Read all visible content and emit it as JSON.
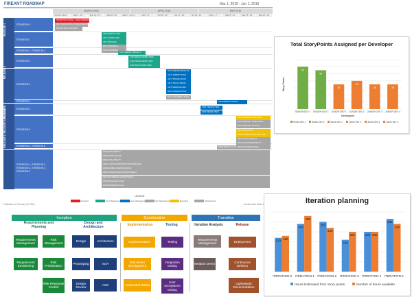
{
  "roadmap": {
    "title": "FIREANT ROADMAP",
    "date_range": "Mar 1, 2016 - Jun 1, 2016",
    "months": [
      "MARCH 2016",
      "APRIL 2016",
      "MAY 2016"
    ],
    "weeks": [
      "Feb 28 - Mar 5",
      "Mar 6 - 12",
      "Mar 13 - 19",
      "Mar 20 - 26",
      "Mar 27 - Apr 2",
      "Apr 3 - 9",
      "Apr 10 - 16",
      "Apr 17 - 23",
      "Apr 24 - 30",
      "May 1 - 7",
      "May 8 - 14",
      "May 15 - 21",
      "May 22 - 28"
    ],
    "releases": [
      "RELEASE 1",
      "RELEASE 2",
      "RELEASE 3",
      "RELEASE 1, RELEASE 2, RELEASE 3"
    ],
    "iterations": [
      "ITERATION 0",
      "ITERATION 1",
      "ITERATION 1, ITERATION 2",
      "ITERATION 2",
      "ITERATION 3",
      "ITERATION 3",
      "ITERATION 4",
      "ITERATION 5",
      "ITERATION 4, ITERATION 5",
      "ITERATION 1, ITERATION 2, ITERATION 3, ITERATION 4, ITERATION 5"
    ],
    "bars": [
      {
        "label": "INCEPTION PHASE - REQUIREMENT ...",
        "color": "#e31b23"
      },
      {
        "label": "DM FI INFRASTRUCTURE REQUIREMENT",
        "color": "#a6a6a6"
      },
      {
        "label": "DM ROLES & POLICIES",
        "color": "#a6a6a6"
      },
      {
        "label": "UM 0 CREATE USE...",
        "color": "#1ea58a"
      },
      {
        "label": "UM 1 ENTER USE...",
        "color": "#1ea58a"
      },
      {
        "label": "UM 2 MANAGE...",
        "color": "#1ea58a"
      },
      {
        "label": "DM 3 BUSINESS...",
        "color": "#a6a6a6"
      },
      {
        "label": "DM 4 BUSINESS...",
        "color": "#a6a6a6"
      },
      {
        "label": "LOT CREATE PROJECT",
        "color": "#1ea58a"
      },
      {
        "label": "LOB CREATE WORK ITEM",
        "color": "#1ea58a"
      },
      {
        "label": "LOB ASSIGN WORK ITEM",
        "color": "#1ea58a"
      },
      {
        "label": "LOB MOVE WORK ITEM",
        "color": "#1ea58a"
      },
      {
        "label": "UM 1 DEFINE ISSUE ST...",
        "color": "#0070c0"
      },
      {
        "label": "UM 2 SUBMIT ISSUE",
        "color": "#0070c0"
      },
      {
        "label": "UM 3 TRIAGE ISSUE",
        "color": "#0070c0"
      },
      {
        "label": "UM 4 TRACK INFOR...",
        "color": "#0070c0"
      },
      {
        "label": "UM 5 MANAGE USE...",
        "color": "#0070c0"
      },
      {
        "label": "UM 6 ISSUE STATUS",
        "color": "#0070c0"
      },
      {
        "label": "DM 17 BUSINESS RULE",
        "color": "#a6a6a6"
      },
      {
        "label": "UM4 DEFINE KATING...",
        "color": "#0070c0"
      },
      {
        "label": "UM5 CREATE ITEM",
        "color": "#0070c0"
      },
      {
        "label": "UM6 DEFINE ITEM",
        "color": "#0070c0"
      },
      {
        "label": "UM1 GENERATE REPORTS",
        "color": "#f2c200"
      },
      {
        "label": "DM13 REPORT TEMPLATES",
        "color": "#a6a6a6"
      },
      {
        "label": "DM14 REPORT FILTERS",
        "color": "#a6a6a6"
      },
      {
        "label": "UM 2 STATISTICS",
        "color": "#f2c200"
      },
      {
        "label": "UM3 ESTABLISH PROJECT RE...",
        "color": "#f2c200"
      },
      {
        "label": "DM15 EXTENSIBILITY",
        "color": "#a6a6a6"
      },
      {
        "label": "DM16 INTEROPERABILITY",
        "color": "#a6a6a6"
      },
      {
        "label": "DM17 BUSINESS RULE",
        "color": "#a6a6a6"
      },
      {
        "label": "DM18 DEPLOY & SUPPORT",
        "color": "#a6a6a6"
      },
      {
        "label": "DM19 AVAILABILITY",
        "color": "#a6a6a6"
      },
      {
        "label": "DM01 EASE OF USE",
        "color": "#a6a6a6"
      },
      {
        "label": "DM03 AVAILABILITY",
        "color": "#a6a6a6"
      },
      {
        "label": "DM07 LAPTOP/DESKTOP PERFORMANCE",
        "color": "#a6a6a6"
      },
      {
        "label": "DM08 MOBILE PERFORMANCE",
        "color": "#a6a6a6"
      },
      {
        "label": "DM09 OPERATIONAL ENVIRONMENT",
        "color": "#a6a6a6"
      },
      {
        "label": "DM10 INTERFACE CONSISTENCY",
        "color": "#a6a6a6"
      },
      {
        "label": "DM11 BUSINESS RULE",
        "color": "#a6a6a6"
      },
      {
        "label": "DM18 BUSINESS RULE",
        "color": "#a6a6a6"
      }
    ],
    "legend_title": "LEGEND",
    "legend": [
      {
        "label": "Inception",
        "color": "#e31b23"
      },
      {
        "label": "User Management",
        "color": "#1ea58a"
      },
      {
        "label": "Issue Management",
        "color": "#0070c0"
      },
      {
        "label": "Item Management",
        "color": "#a6a6a6"
      },
      {
        "label": "Reporting",
        "color": "#f2c200"
      },
      {
        "label": "Infrastructure",
        "color": "#a6a6a6"
      }
    ],
    "footer_left": "Published on February 18, 2016",
    "footer_right": "Created with Office Timeline"
  },
  "storypoints": {
    "title": "Total StoryPoints Assigned per Developer",
    "chart_data": {
      "type": "bar",
      "title": "Total StoryPoints Assigned per Developer",
      "xlabel": "Developers",
      "ylabel": "Story Points",
      "categories": [
        "SENIOR DEV 1",
        "SENIOR DEV 2",
        "JUNIOR DEV 1",
        "JUNIOR DEV 2",
        "JUNIOR DEV 3",
        "JUNIOR DEV 4"
      ],
      "values": [
        60,
        55,
        35,
        40,
        35,
        35
      ],
      "ylim": [
        0,
        70
      ],
      "colors": [
        "#70ad47",
        "#70ad47",
        "#ed7d31",
        "#ed7d31",
        "#ed7d31",
        "#ed7d31"
      ],
      "legend": [
        "Senior Dev 1",
        "Senior Dev 2",
        "Junior Dev 1",
        "Junior Dev 2",
        "Junior Dev 3",
        "Junior Dev 4"
      ],
      "legend_position": "bottom"
    }
  },
  "iteration": {
    "title": "Iteration planning",
    "chart_data": {
      "type": "bar",
      "title": "Iteration planning",
      "categories": [
        "ITERATION 0",
        "ITERATION 1",
        "ITERATION 2",
        "ITERATION 3",
        "ITERATION 4",
        "ITERATION 5"
      ],
      "series": [
        {
          "name": "Hours Estimated from Story points",
          "values": [
            170,
            240,
            250,
            160,
            200,
            265
          ],
          "color": "#4a90d9"
        },
        {
          "name": "Number of hours available",
          "values": [
            180,
            280,
            220,
            200,
            200,
            240
          ],
          "color": "#ed7d31"
        }
      ],
      "ylim": [
        0,
        300
      ],
      "legend_position": "bottom"
    }
  },
  "process": {
    "phases": [
      {
        "name": "Inception",
        "color": "#1fa37f"
      },
      {
        "name": "Construction",
        "color": "#f2a800"
      },
      {
        "name": "Transition",
        "color": "#2e75b6"
      }
    ],
    "subheads": [
      "Requirements and Planning",
      "Design and Architecture",
      "Implementation",
      "Testing",
      "Iteration Analysis",
      "Release"
    ],
    "items": [
      "Requirements Management",
      "Risk Management",
      "Design",
      "Architecture",
      "Requirement Envisioning",
      "Risk Prioritization",
      "Prototyping",
      "SOA",
      "Risk Response Control",
      "Design Review",
      "ACD",
      "Implementation",
      "Testing",
      "Test driven development",
      "Integration testing",
      "Automated Builds",
      "User acceptance testing",
      "Requirements Management",
      "Deployment",
      "Iteration Demo",
      "Continuous Delivery",
      "Lightweight Documentation"
    ]
  }
}
